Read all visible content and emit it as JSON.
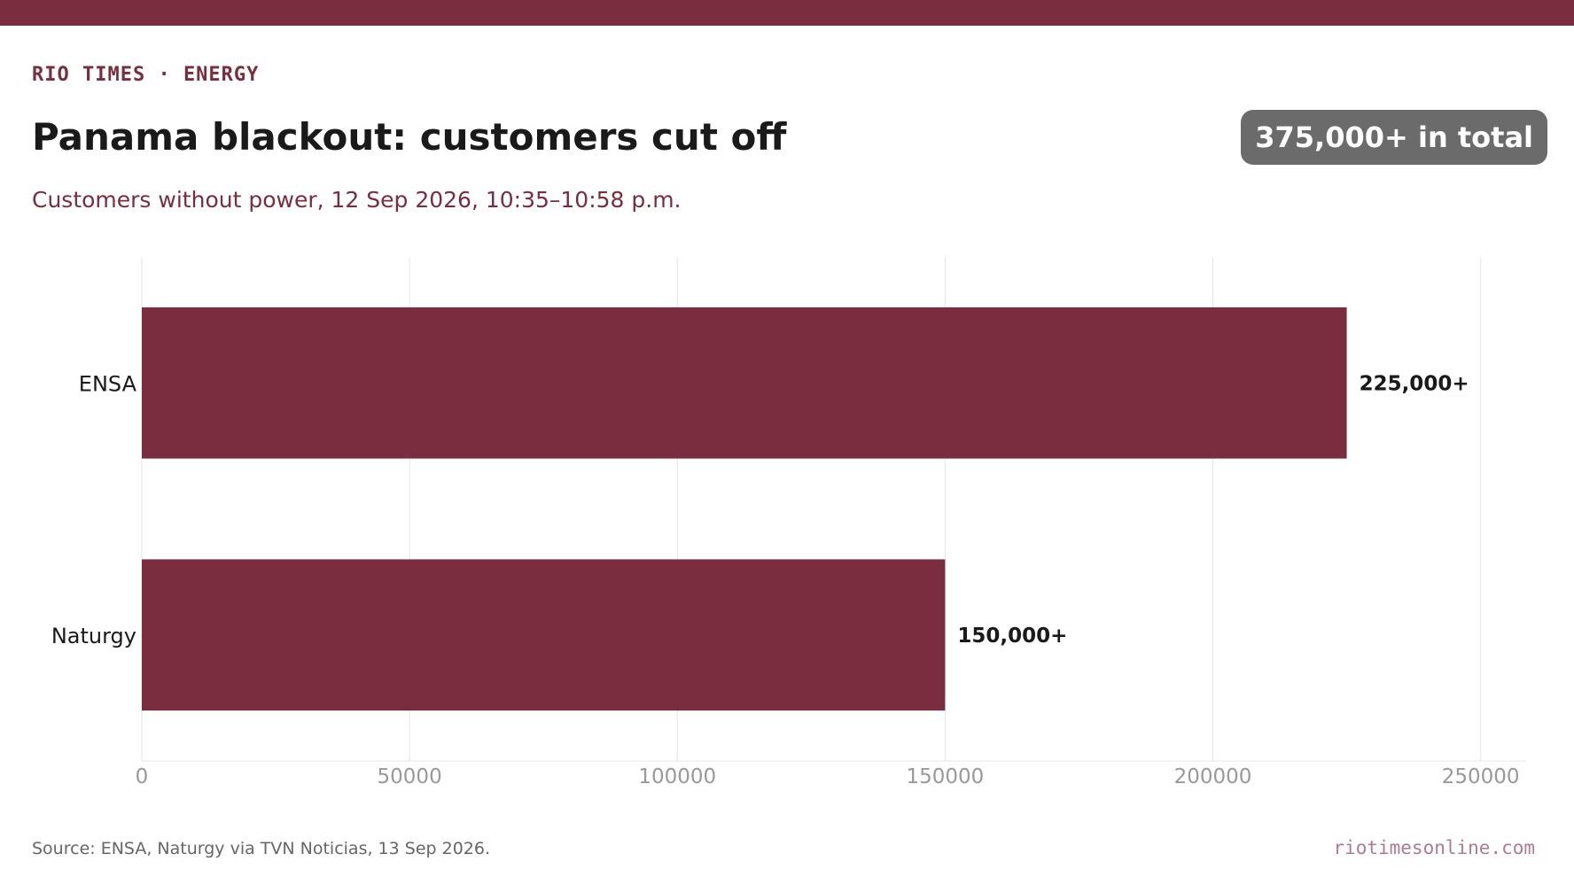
{
  "header": {
    "kicker": "RIO TIMES · ENERGY",
    "title": "Panama blackout: customers cut off",
    "subtitle": "Customers without power, 12 Sep 2026, 10:35–10:58 p.m.",
    "badge": "375,000+ in total"
  },
  "footer": {
    "source": "Source: ENSA, Naturgy via TVN Noticias, 13 Sep 2026.",
    "site": "riotimesonline.com"
  },
  "colors": {
    "accent": "#7b2d40",
    "badge": "#6b6b6b",
    "grid": "#e6e6e6",
    "tick": "#999999"
  },
  "chart_data": {
    "type": "bar",
    "orientation": "horizontal",
    "categories": [
      "ENSA",
      "Naturgy"
    ],
    "values": [
      225000,
      150000
    ],
    "data_labels": [
      "225,000+",
      "150,000+"
    ],
    "xlim": [
      0,
      258500
    ],
    "xticks": [
      0,
      50000,
      100000,
      150000,
      200000,
      250000
    ],
    "xtick_labels": [
      "0",
      "50000",
      "100000",
      "150000",
      "200000",
      "250000"
    ],
    "grid": "vertical",
    "legend": "none"
  }
}
